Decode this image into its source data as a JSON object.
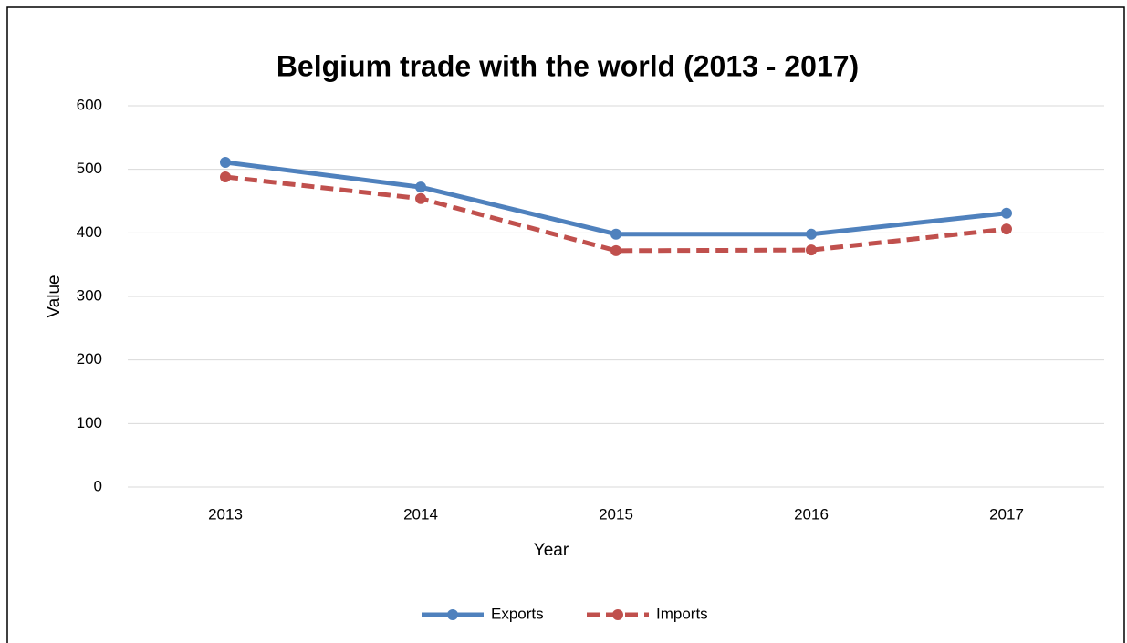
{
  "chart_data": {
    "type": "line",
    "title": "Belgium trade with the world (2013 - 2017)",
    "x_label": "Year",
    "y_label": "Value",
    "categories": [
      "2013",
      "2014",
      "2015",
      "2016",
      "2017"
    ],
    "series": [
      {
        "name": "Exports",
        "color": "#4f81bd",
        "values": [
          511,
          472,
          398,
          398,
          431
        ]
      },
      {
        "name": "Imports",
        "color": "#c0504d",
        "values": [
          488,
          454,
          372,
          373,
          406
        ]
      }
    ],
    "ylim": [
      0,
      600
    ],
    "yticks": [
      0,
      100,
      200,
      300,
      400,
      500,
      600
    ],
    "grid": true,
    "legend": "bottom"
  }
}
